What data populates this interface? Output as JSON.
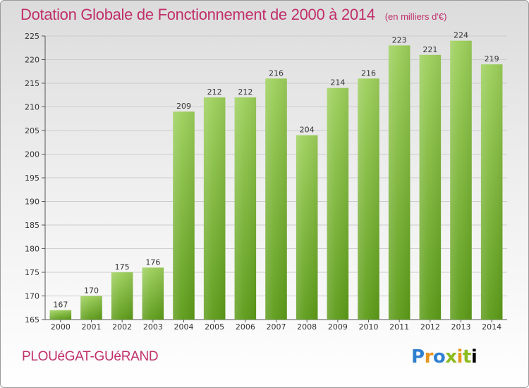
{
  "header": {
    "title": "Dotation Globale de Fonctionnement de 2000 à 2014",
    "units": "(en milliers d'€)"
  },
  "footer": {
    "commune": "PLOUéGAT-GUéRAND",
    "brand_letters": [
      "P",
      "r",
      "o",
      "x",
      "i",
      "t",
      "i"
    ]
  },
  "colors": {
    "title": "#c0306a",
    "bar_light": "#9ccf5a",
    "bar_dark": "#5c9b18",
    "grid": "#cccccc"
  },
  "chart_data": {
    "type": "bar",
    "categories": [
      "2000",
      "2001",
      "2002",
      "2003",
      "2004",
      "2005",
      "2006",
      "2007",
      "2008",
      "2009",
      "2010",
      "2011",
      "2012",
      "2013",
      "2014"
    ],
    "values": [
      167,
      170,
      175,
      176,
      209,
      212,
      212,
      216,
      204,
      214,
      216,
      223,
      221,
      224,
      219
    ],
    "ylim": [
      165,
      225
    ],
    "yticks": [
      165,
      170,
      175,
      180,
      185,
      190,
      195,
      200,
      205,
      210,
      215,
      220,
      225
    ],
    "grid": true,
    "xlabel": "",
    "ylabel": ""
  }
}
